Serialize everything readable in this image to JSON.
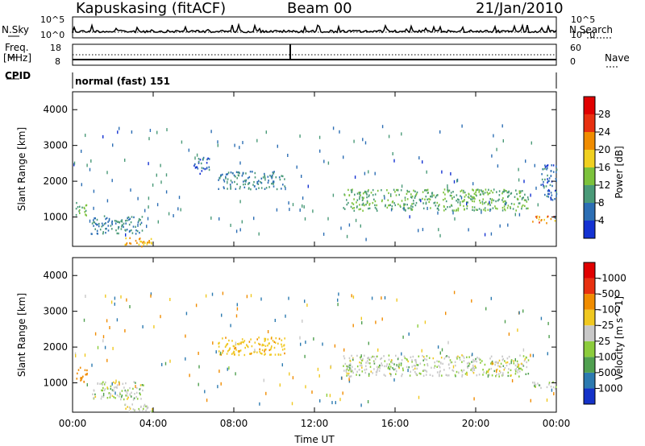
{
  "header": {
    "station": "Kapuskasing (fitACF)",
    "beam": "Beam 00",
    "date": "21/Jan/2010"
  },
  "strip": {
    "nsky_label": "N.Sky",
    "nsearch_label": "N.Search",
    "noise_ticks": [
      "10^5",
      "10^0"
    ],
    "freq_label": "Freq.",
    "freq_unit": "[MHz]",
    "freq_ticks": [
      "18",
      "8"
    ],
    "nave_label": "Nave",
    "nave_ticks": [
      "60",
      "0"
    ],
    "cpid_label": "CPID",
    "cpid_value": "normal (fast) 151"
  },
  "chart_data": [
    {
      "type": "heatmap",
      "title": "",
      "ylabel": "Slant Range [km]",
      "xlabel": "",
      "ylim": [
        180,
        4500
      ],
      "yticks": [
        1000,
        2000,
        3000,
        4000
      ],
      "colorbar_label": "Power [dB]",
      "colorbar_ticks": [
        "4",
        "8",
        "12",
        "16",
        "20",
        "24",
        "28"
      ],
      "colorbar_colors": [
        "#1432d2",
        "#2c6eb4",
        "#4a9a78",
        "#7cc23c",
        "#f0d020",
        "#f08c00",
        "#e83010",
        "#e00000"
      ],
      "scatter_regions": [
        {
          "t0": 0.1,
          "t1": 0.7,
          "r0": 1050,
          "r1": 1450,
          "power": 12
        },
        {
          "t0": 0.9,
          "t1": 3.5,
          "r0": 550,
          "r1": 1050,
          "power": 8
        },
        {
          "t0": 2.5,
          "t1": 4.0,
          "r0": 200,
          "r1": 450,
          "power": 20
        },
        {
          "t0": 6.0,
          "t1": 6.8,
          "r0": 2200,
          "r1": 2700,
          "power": 6
        },
        {
          "t0": 7.2,
          "t1": 10.5,
          "r0": 1800,
          "r1": 2300,
          "power": 8
        },
        {
          "t0": 13.4,
          "t1": 22.6,
          "r0": 1200,
          "r1": 1800,
          "power": 12
        },
        {
          "t0": 22.8,
          "t1": 24.0,
          "r0": 850,
          "r1": 1050,
          "power": 22
        },
        {
          "t0": 23.2,
          "t1": 24.0,
          "r0": 1500,
          "r1": 2500,
          "power": 6
        }
      ]
    },
    {
      "type": "heatmap",
      "title": "",
      "ylabel": "Slant Range [km]",
      "xlabel": "Time UT",
      "ylim": [
        180,
        4500
      ],
      "yticks": [
        1000,
        2000,
        3000,
        4000
      ],
      "x": [
        "00:00",
        "04:00",
        "08:00",
        "12:00",
        "16:00",
        "20:00",
        "00:00"
      ],
      "colorbar_label": "Velocity [m s^-1]",
      "colorbar_ticks": [
        "1000",
        "500",
        "100",
        "25",
        "-25",
        "-100",
        "-500",
        "-1000"
      ],
      "colorbar_colors": [
        "#1432c8",
        "#2c7ab0",
        "#50a050",
        "#8ccc3c",
        "#c8c8c8",
        "#f0c820",
        "#f08c00",
        "#e83010",
        "#e00000"
      ],
      "scatter_regions": [
        {
          "t0": 0.1,
          "t1": 0.7,
          "r0": 1050,
          "r1": 1450,
          "velocity": -300
        },
        {
          "t0": 0.9,
          "t1": 3.5,
          "r0": 550,
          "r1": 1050,
          "velocity": 0
        },
        {
          "t0": 2.5,
          "t1": 4.0,
          "r0": 200,
          "r1": 450,
          "velocity": 0
        },
        {
          "t0": 7.2,
          "t1": 10.5,
          "r0": 1800,
          "r1": 2300,
          "velocity": -80
        },
        {
          "t0": 13.4,
          "t1": 22.6,
          "r0": 1200,
          "r1": 1800,
          "velocity": 0
        },
        {
          "t0": 22.8,
          "t1": 24.0,
          "r0": 850,
          "r1": 1050,
          "velocity": 0
        }
      ]
    }
  ]
}
